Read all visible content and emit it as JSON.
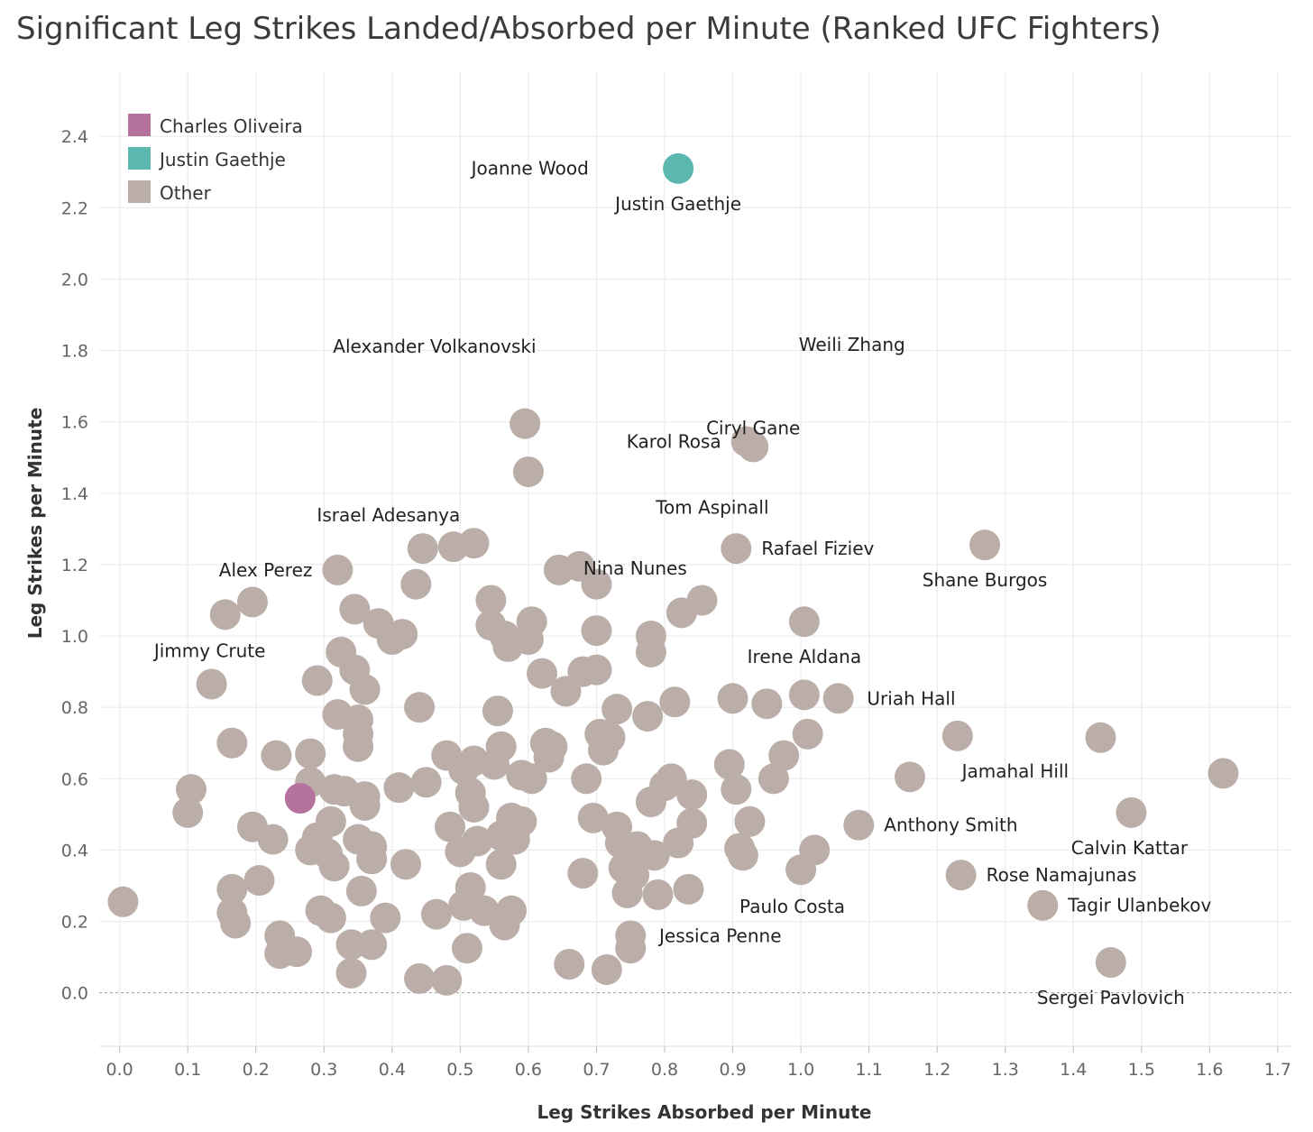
{
  "chart_data": {
    "type": "scatter",
    "title": "Significant Leg Strikes Landed/Absorbed per Minute (Ranked UFC Fighters)",
    "xlabel": "Leg Strikes Absorbed per Minute",
    "ylabel": "Leg Strikes per Minute",
    "xlim": [
      -0.03,
      1.72
    ],
    "ylim": [
      -0.15,
      2.58
    ],
    "x_ticks": [
      "0.0",
      "0.1",
      "0.2",
      "0.3",
      "0.4",
      "0.5",
      "0.6",
      "0.7",
      "0.8",
      "0.9",
      "1.0",
      "1.1",
      "1.2",
      "1.3",
      "1.4",
      "1.5",
      "1.6",
      "1.7"
    ],
    "y_ticks": [
      "0.0",
      "0.2",
      "0.4",
      "0.6",
      "0.8",
      "1.0",
      "1.2",
      "1.4",
      "1.6",
      "1.8",
      "2.0",
      "2.2",
      "2.4"
    ],
    "grid": true,
    "legend_position": "top-left",
    "colors": {
      "Charles Oliveira": "#b5729c",
      "Justin Gaethje": "#5cb8ae",
      "Other": "#bbaea8"
    },
    "legend": [
      "Charles Oliveira",
      "Justin Gaethje",
      "Other"
    ],
    "highlighted": [
      {
        "name": "Charles Oliveira",
        "x": 0.265,
        "y": 0.545
      },
      {
        "name": "Justin Gaethje",
        "x": 0.82,
        "y": 2.31
      }
    ],
    "labeled_points": [
      {
        "name": "Joanne Wood",
        "x": 0.605,
        "y": 2.41
      },
      {
        "name": "Justin Gaethje",
        "x": 0.82,
        "y": 2.31
      },
      {
        "name": "Alexander Volkanovski",
        "x": 0.465,
        "y": 1.91
      },
      {
        "name": "Weili Zhang",
        "x": 1.075,
        "y": 1.915
      },
      {
        "name": "Karol Rosa",
        "x": 0.92,
        "y": 1.545
      },
      {
        "name": "Ciryl Gane",
        "x": 0.93,
        "y": 1.53
      },
      {
        "name": "Tom Aspinall",
        "x": 0.75,
        "y": 1.36
      },
      {
        "name": "Israel Adesanya",
        "x": 0.445,
        "y": 1.245
      },
      {
        "name": "Nina Nunes",
        "x": 0.68,
        "y": 1.19
      },
      {
        "name": "Rafael Fiziev",
        "x": 0.905,
        "y": 1.245
      },
      {
        "name": "Shane Burgos",
        "x": 1.27,
        "y": 1.255
      },
      {
        "name": "Alex Perez",
        "x": 0.32,
        "y": 1.185
      },
      {
        "name": "Jimmy Crute",
        "x": 0.135,
        "y": 0.865
      },
      {
        "name": "Irene Aldana",
        "x": 1.005,
        "y": 1.04
      },
      {
        "name": "Uriah Hall",
        "x": 1.06,
        "y": 0.825
      },
      {
        "name": "Jamahal Hill",
        "x": 1.23,
        "y": 0.72
      },
      {
        "name": "Anthony Smith",
        "x": 1.085,
        "y": 0.47
      },
      {
        "name": "Calvin Kattar",
        "x": 1.485,
        "y": 0.505
      },
      {
        "name": "Rose Namajunas",
        "x": 1.235,
        "y": 0.33
      },
      {
        "name": "Paulo Costa",
        "x": 0.99,
        "y": 0.345
      },
      {
        "name": "Tagir Ulanbekov",
        "x": 1.355,
        "y": 0.245
      },
      {
        "name": "Jessica Penne",
        "x": 0.755,
        "y": 0.16
      },
      {
        "name": "Sergei Pavlovich",
        "x": 1.455,
        "y": 0.085
      }
    ],
    "other_points": [
      [
        0.005,
        0.255
      ],
      [
        0.105,
        0.57
      ],
      [
        0.1,
        0.505
      ],
      [
        0.135,
        0.865
      ],
      [
        0.155,
        1.06
      ],
      [
        0.195,
        1.095
      ],
      [
        0.165,
        0.7
      ],
      [
        0.165,
        0.29
      ],
      [
        0.165,
        0.225
      ],
      [
        0.17,
        0.195
      ],
      [
        0.195,
        0.465
      ],
      [
        0.205,
        0.315
      ],
      [
        0.225,
        0.43
      ],
      [
        0.23,
        0.665
      ],
      [
        0.235,
        0.16
      ],
      [
        0.235,
        0.11
      ],
      [
        0.26,
        0.115
      ],
      [
        0.28,
        0.67
      ],
      [
        0.28,
        0.59
      ],
      [
        0.28,
        0.4
      ],
      [
        0.29,
        0.875
      ],
      [
        0.29,
        0.435
      ],
      [
        0.295,
        0.23
      ],
      [
        0.305,
        0.39
      ],
      [
        0.31,
        0.48
      ],
      [
        0.31,
        0.21
      ],
      [
        0.315,
        0.355
      ],
      [
        0.315,
        0.57
      ],
      [
        0.32,
        1.185
      ],
      [
        0.32,
        0.78
      ],
      [
        0.325,
        0.955
      ],
      [
        0.33,
        0.565
      ],
      [
        0.34,
        0.135
      ],
      [
        0.34,
        0.055
      ],
      [
        0.345,
        1.075
      ],
      [
        0.345,
        0.905
      ],
      [
        0.35,
        0.43
      ],
      [
        0.35,
        0.765
      ],
      [
        0.35,
        0.725
      ],
      [
        0.35,
        0.69
      ],
      [
        0.355,
        0.285
      ],
      [
        0.36,
        0.85
      ],
      [
        0.36,
        0.55
      ],
      [
        0.36,
        0.525
      ],
      [
        0.37,
        0.41
      ],
      [
        0.37,
        0.375
      ],
      [
        0.37,
        0.135
      ],
      [
        0.38,
        1.035
      ],
      [
        0.39,
        0.21
      ],
      [
        0.4,
        0.99
      ],
      [
        0.41,
        0.575
      ],
      [
        0.415,
        1.005
      ],
      [
        0.42,
        0.36
      ],
      [
        0.435,
        1.145
      ],
      [
        0.44,
        0.8
      ],
      [
        0.44,
        0.04
      ],
      [
        0.445,
        1.245
      ],
      [
        0.45,
        0.59
      ],
      [
        0.465,
        0.22
      ],
      [
        0.48,
        0.665
      ],
      [
        0.48,
        0.035
      ],
      [
        0.485,
        0.465
      ],
      [
        0.49,
        1.25
      ],
      [
        0.5,
        0.395
      ],
      [
        0.505,
        0.245
      ],
      [
        0.505,
        0.625
      ],
      [
        0.51,
        0.125
      ],
      [
        0.515,
        0.295
      ],
      [
        0.515,
        0.56
      ],
      [
        0.52,
        0.65
      ],
      [
        0.52,
        0.52
      ],
      [
        0.525,
        0.425
      ],
      [
        0.52,
        1.26
      ],
      [
        0.535,
        0.23
      ],
      [
        0.545,
        1.1
      ],
      [
        0.545,
        1.03
      ],
      [
        0.55,
        0.64
      ],
      [
        0.555,
        0.79
      ],
      [
        0.56,
        0.69
      ],
      [
        0.56,
        0.44
      ],
      [
        0.56,
        0.36
      ],
      [
        0.565,
        0.19
      ],
      [
        0.565,
        1.0
      ],
      [
        0.57,
        0.97
      ],
      [
        0.575,
        0.23
      ],
      [
        0.575,
        0.49
      ],
      [
        0.58,
        0.43
      ],
      [
        0.59,
        0.61
      ],
      [
        0.59,
        0.48
      ],
      [
        0.595,
        1.595
      ],
      [
        0.6,
        1.46
      ],
      [
        0.6,
        0.99
      ],
      [
        0.605,
        1.04
      ],
      [
        0.605,
        0.6
      ],
      [
        0.62,
        0.895
      ],
      [
        0.625,
        0.7
      ],
      [
        0.63,
        0.66
      ],
      [
        0.635,
        0.69
      ],
      [
        0.645,
        1.185
      ],
      [
        0.655,
        0.845
      ],
      [
        0.66,
        0.08
      ],
      [
        0.675,
        1.195
      ],
      [
        0.68,
        0.9
      ],
      [
        0.68,
        0.335
      ],
      [
        0.685,
        0.6
      ],
      [
        0.695,
        0.49
      ],
      [
        0.7,
        1.015
      ],
      [
        0.7,
        0.905
      ],
      [
        0.7,
        1.145
      ],
      [
        0.705,
        0.725
      ],
      [
        0.71,
        0.68
      ],
      [
        0.715,
        0.065
      ],
      [
        0.72,
        0.715
      ],
      [
        0.73,
        0.795
      ],
      [
        0.73,
        0.465
      ],
      [
        0.735,
        0.42
      ],
      [
        0.74,
        0.35
      ],
      [
        0.745,
        0.28
      ],
      [
        0.75,
        0.16
      ],
      [
        0.75,
        0.125
      ],
      [
        0.755,
        0.33
      ],
      [
        0.76,
        0.41
      ],
      [
        0.775,
        0.775
      ],
      [
        0.78,
        0.535
      ],
      [
        0.78,
        1.0
      ],
      [
        0.78,
        0.955
      ],
      [
        0.785,
        0.385
      ],
      [
        0.79,
        0.275
      ],
      [
        0.8,
        0.58
      ],
      [
        0.81,
        0.6
      ],
      [
        0.815,
        0.815
      ],
      [
        0.82,
        0.42
      ],
      [
        0.825,
        1.065
      ],
      [
        0.835,
        0.29
      ],
      [
        0.84,
        0.555
      ],
      [
        0.84,
        0.475
      ],
      [
        0.855,
        1.1
      ],
      [
        0.895,
        0.64
      ],
      [
        0.9,
        0.825
      ],
      [
        0.905,
        1.245
      ],
      [
        0.905,
        0.57
      ],
      [
        0.91,
        0.405
      ],
      [
        0.915,
        0.385
      ],
      [
        0.92,
        1.545
      ],
      [
        0.93,
        1.53
      ],
      [
        0.925,
        0.48
      ],
      [
        0.95,
        0.81
      ],
      [
        0.96,
        0.6
      ],
      [
        0.975,
        0.665
      ],
      [
        1.0,
        0.345
      ],
      [
        1.005,
        0.835
      ],
      [
        1.005,
        1.04
      ],
      [
        1.01,
        0.725
      ],
      [
        1.02,
        0.4
      ],
      [
        1.055,
        0.825
      ],
      [
        1.085,
        0.47
      ],
      [
        1.16,
        0.605
      ],
      [
        1.23,
        0.72
      ],
      [
        1.235,
        0.33
      ],
      [
        1.27,
        1.255
      ],
      [
        1.355,
        0.245
      ],
      [
        1.44,
        0.715
      ],
      [
        1.455,
        0.085
      ],
      [
        1.485,
        0.505
      ],
      [
        1.62,
        0.615
      ]
    ]
  }
}
